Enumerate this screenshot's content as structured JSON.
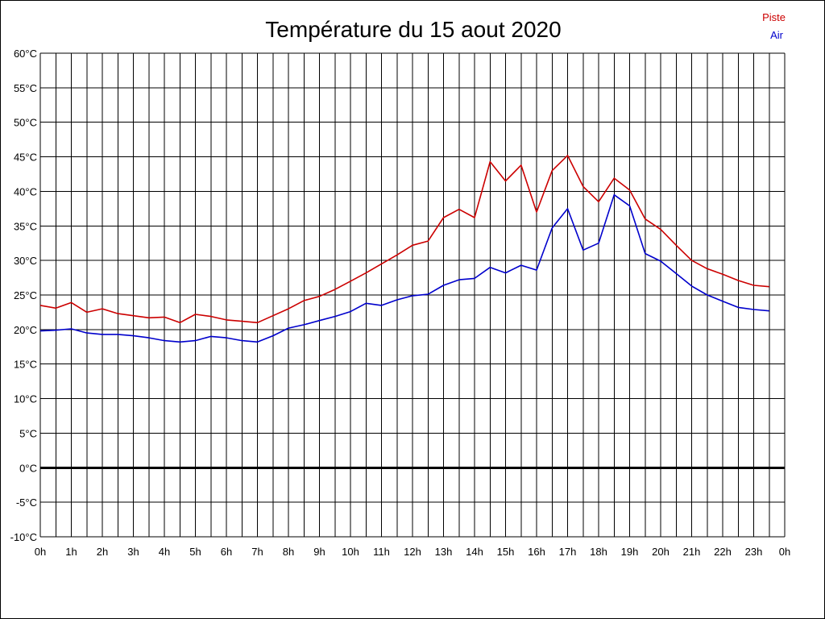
{
  "chart_data": {
    "type": "line",
    "title": "Température du 15 aout 2020",
    "xlabel": "",
    "ylabel": "",
    "ylim": [
      -10,
      60
    ],
    "xlim": [
      0,
      24
    ],
    "grid": true,
    "legend_position": "top-right",
    "y_ticks": [
      "60°C",
      "55°C",
      "50°C",
      "45°C",
      "40°C",
      "35°C",
      "30°C",
      "25°C",
      "20°C",
      "15°C",
      "10°C",
      "5°C",
      "0°C",
      "-5°C",
      "-10°C"
    ],
    "x_ticks": [
      "0h",
      "1h",
      "2h",
      "3h",
      "4h",
      "5h",
      "6h",
      "7h",
      "8h",
      "9h",
      "10h",
      "11h",
      "12h",
      "13h",
      "14h",
      "15h",
      "16h",
      "17h",
      "18h",
      "19h",
      "20h",
      "21h",
      "22h",
      "23h",
      "0h"
    ],
    "x": [
      0,
      0.5,
      1,
      1.5,
      2,
      2.5,
      3,
      3.5,
      4,
      4.5,
      5,
      5.5,
      6,
      6.5,
      7,
      7.5,
      8,
      8.5,
      9,
      9.5,
      10,
      10.5,
      11,
      11.5,
      12,
      12.5,
      13,
      13.5,
      14,
      14.5,
      15,
      15.5,
      16,
      16.5,
      17,
      17.5,
      18,
      18.5,
      19,
      19.5,
      20,
      20.5,
      21,
      21.5,
      22,
      22.5,
      23,
      23.5
    ],
    "series": [
      {
        "name": "Piste",
        "color": "#cc0000",
        "values": [
          23.5,
          23.1,
          23.9,
          22.5,
          23.0,
          22.3,
          22.0,
          21.7,
          21.8,
          21.0,
          22.2,
          21.9,
          21.4,
          21.2,
          21.0,
          22.0,
          23.0,
          24.2,
          24.8,
          25.8,
          27.0,
          28.2,
          29.5,
          30.8,
          32.2,
          32.8,
          36.2,
          37.4,
          36.2,
          44.3,
          41.5,
          43.8,
          37.0,
          43.0,
          45.2,
          40.7,
          38.5,
          41.9,
          40.2,
          36.0,
          34.5,
          32.2,
          30.0,
          28.8,
          28.0,
          27.1,
          26.4,
          26.2
        ]
      },
      {
        "name": "Air",
        "color": "#0000cc",
        "values": [
          19.8,
          19.9,
          20.1,
          19.5,
          19.3,
          19.3,
          19.1,
          18.8,
          18.4,
          18.2,
          18.4,
          19.0,
          18.8,
          18.4,
          18.2,
          19.1,
          20.2,
          20.7,
          21.3,
          21.9,
          22.6,
          23.8,
          23.5,
          24.3,
          24.9,
          25.1,
          26.4,
          27.2,
          27.4,
          29.0,
          28.2,
          29.3,
          28.6,
          34.7,
          37.5,
          31.5,
          32.5,
          39.5,
          37.9,
          31.0,
          29.9,
          28.1,
          26.3,
          25.0,
          24.1,
          23.2,
          22.9,
          22.7
        ]
      }
    ]
  }
}
